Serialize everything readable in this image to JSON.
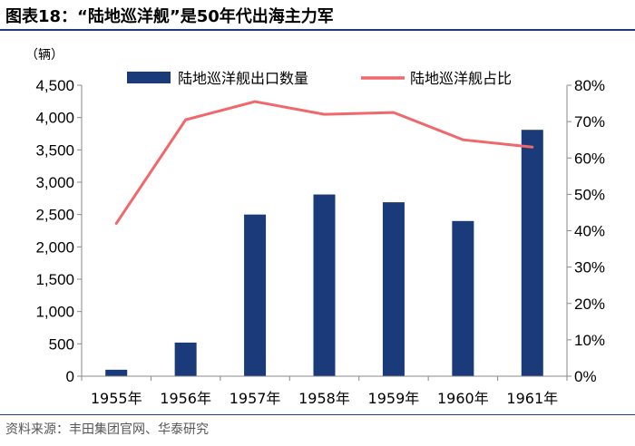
{
  "figure": {
    "title": "图表18：“陆地巡洋舰”是50年代出海主力军",
    "source": "资料来源：丰田集团官网、华泰研究",
    "unit": "（辆）"
  },
  "colors": {
    "bar": "#1a3a7a",
    "line": "#f0686b",
    "rule": "#1f3a7a"
  },
  "chart_data": {
    "type": "bar",
    "categories": [
      "1955年",
      "1956年",
      "1957年",
      "1958年",
      "1959年",
      "1960年",
      "1961年"
    ],
    "series": [
      {
        "name": "陆地巡洋舰出口数量",
        "kind": "bar",
        "axis": "left",
        "values": [
          100,
          520,
          2500,
          2810,
          2690,
          2400,
          3810
        ]
      },
      {
        "name": "陆地巡洋舰占比",
        "kind": "line",
        "axis": "right",
        "values": [
          42,
          70.5,
          75.5,
          72,
          72.5,
          65,
          63
        ]
      }
    ],
    "ylim": [
      0,
      4500
    ],
    "y_ticks": [
      0,
      500,
      1000,
      1500,
      2000,
      2500,
      3000,
      3500,
      4000,
      4500
    ],
    "y_tick_labels": [
      "0",
      "500",
      "1,000",
      "1,500",
      "2,000",
      "2,500",
      "3,000",
      "3,500",
      "4,000",
      "4,500"
    ],
    "y2lim": [
      0,
      80
    ],
    "y2_ticks": [
      0,
      10,
      20,
      30,
      40,
      50,
      60,
      70,
      80
    ],
    "y2_tick_labels": [
      "0%",
      "10%",
      "20%",
      "30%",
      "40%",
      "50%",
      "60%",
      "70%",
      "80%"
    ],
    "legend": "top"
  }
}
